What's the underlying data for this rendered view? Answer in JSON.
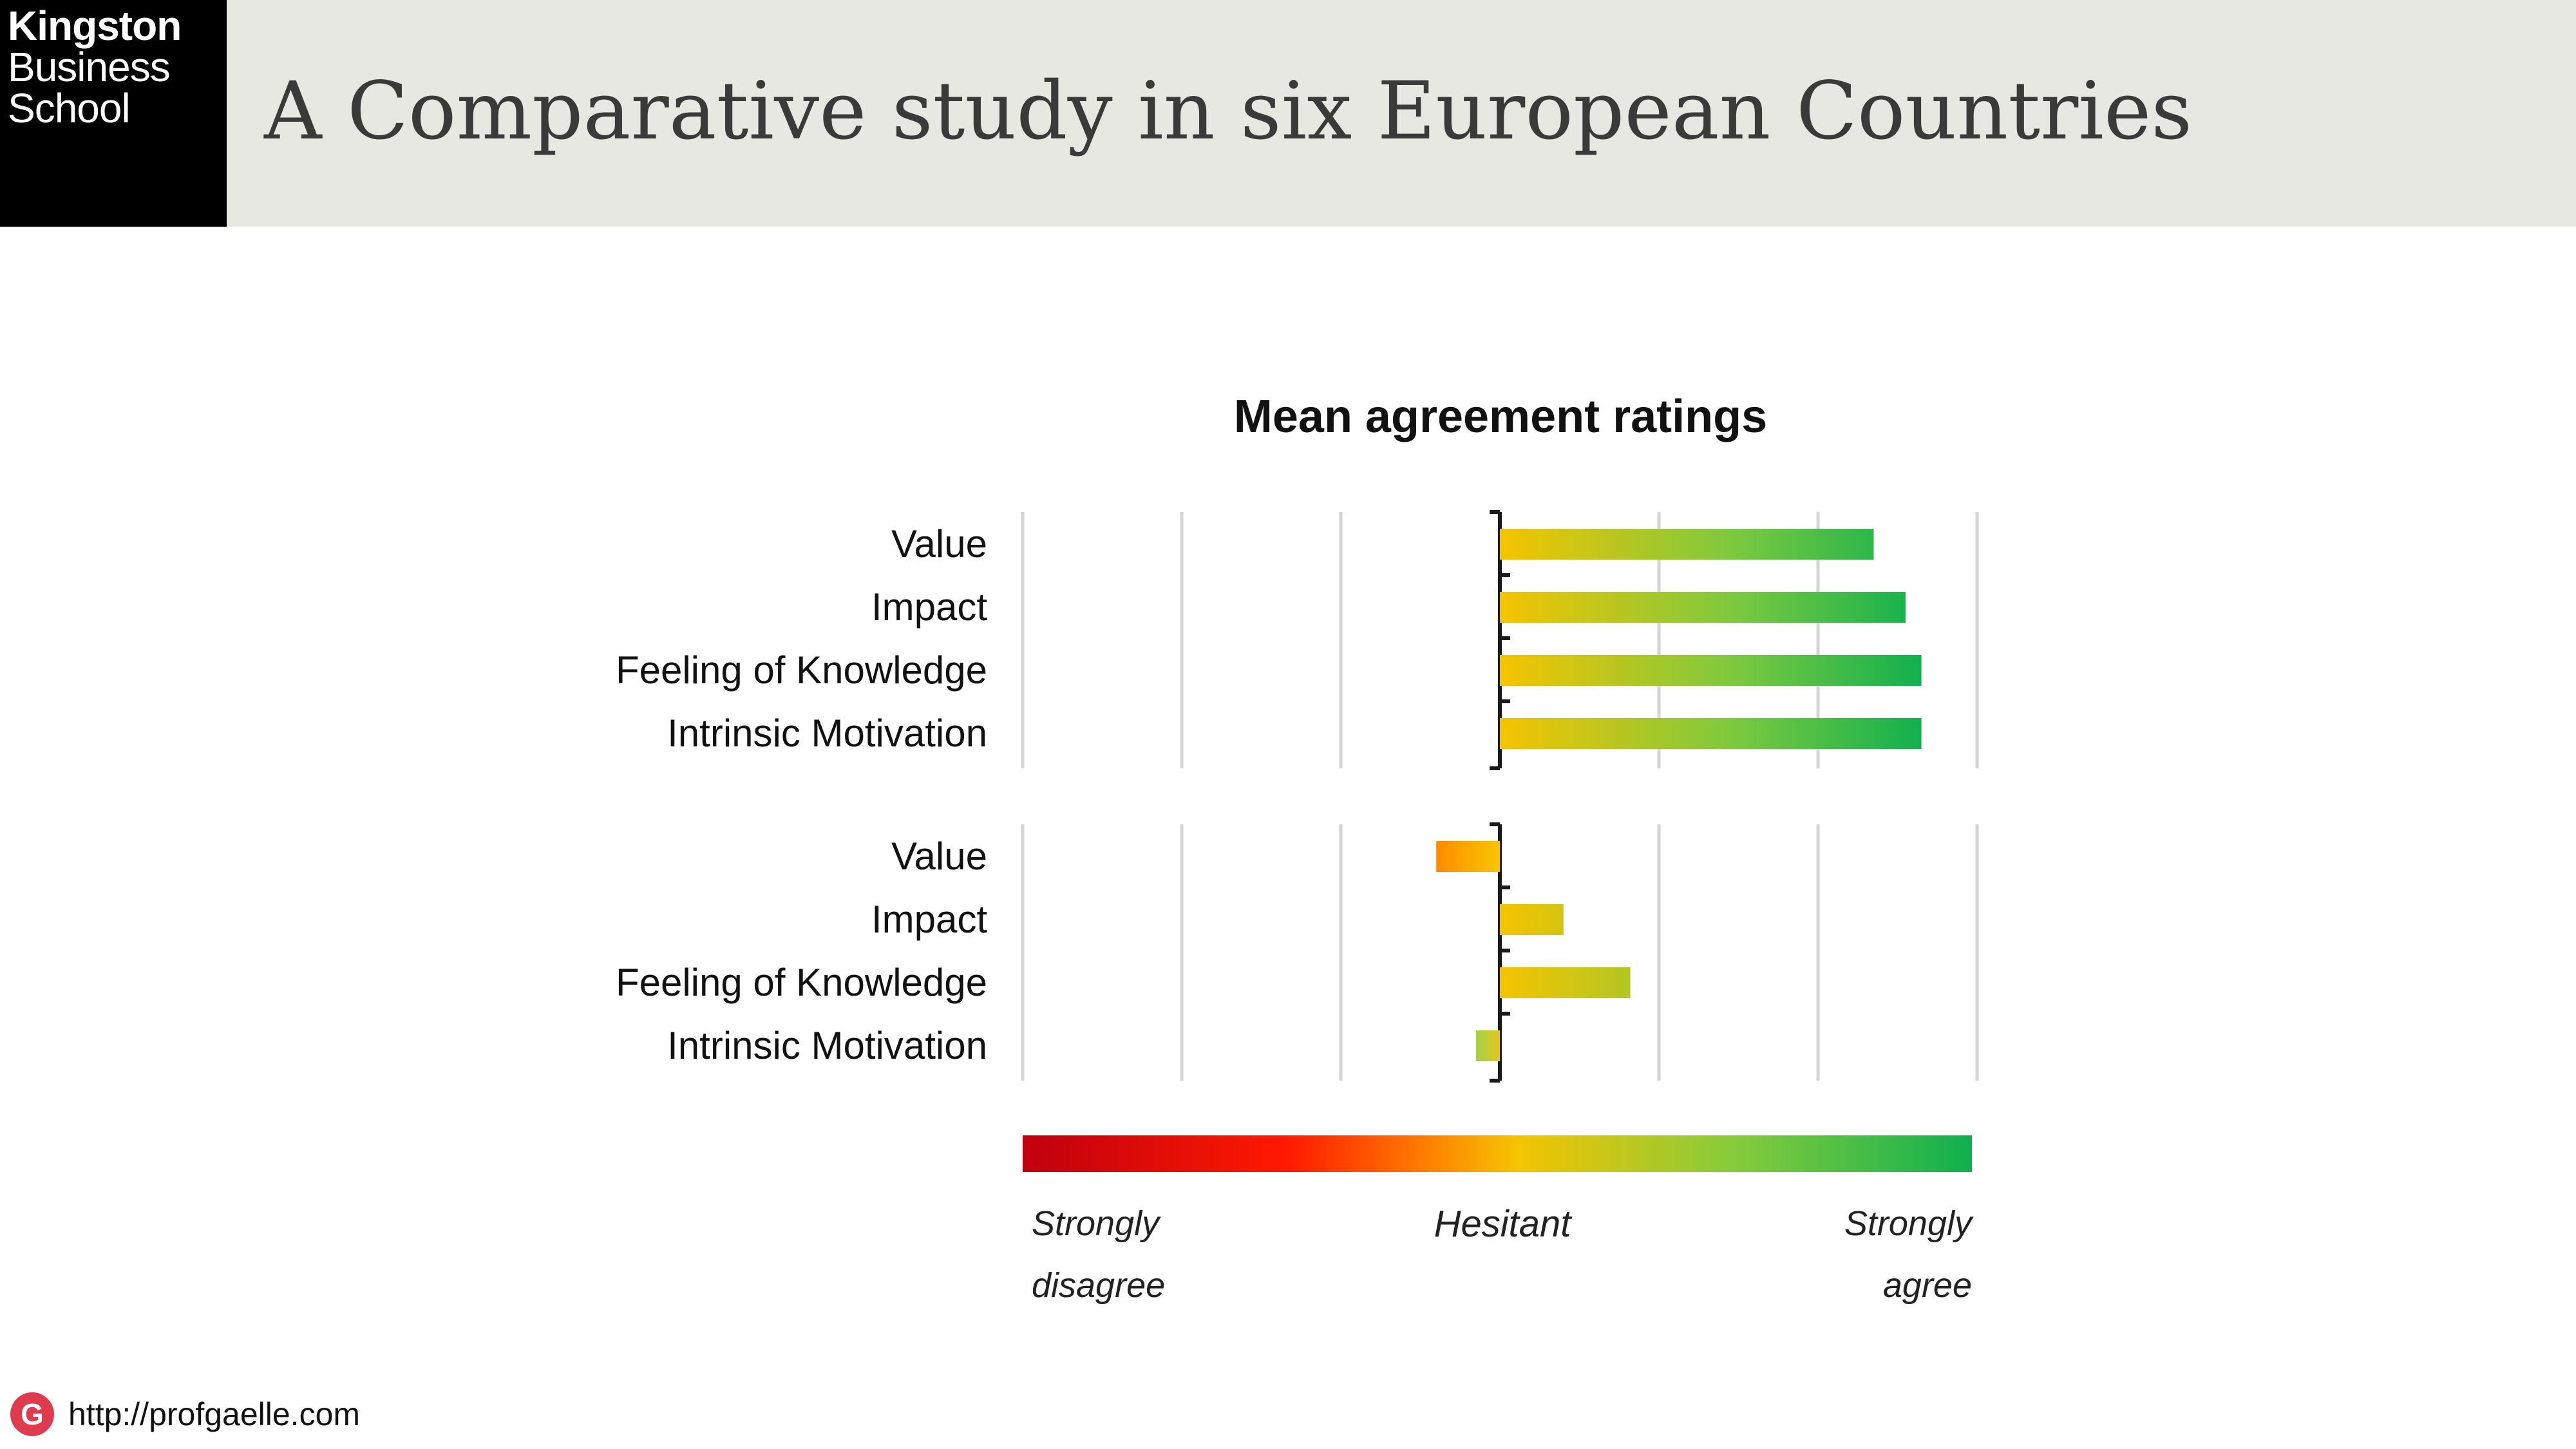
{
  "header": {
    "logo_lines": [
      "Kingston",
      "Business",
      "School"
    ],
    "title": "A Comparative study in six European Countries"
  },
  "footer": {
    "logo_letter": "G",
    "url": "http://profgaelle.com"
  },
  "colors": {
    "header_bg": "#e8e8e3",
    "scale_red": "#c0000f",
    "scale_orange": "#ff7b00",
    "scale_yellow": "#f5c400",
    "scale_green": "#0fb04f",
    "footer_logo": "#e03a4e"
  },
  "chart_data": {
    "type": "bar",
    "orientation": "horizontal",
    "title": "Mean agreement ratings",
    "xlim": [
      -3,
      3
    ],
    "center": 0,
    "groups": [
      {
        "categories": [
          "Value",
          "Impact",
          "Feeling of Knowledge",
          "Intrinsic Motivation"
        ],
        "values": [
          2.35,
          2.55,
          2.65,
          2.65
        ]
      },
      {
        "categories": [
          "Value",
          "Impact",
          "Feeling of Knowledge",
          "Intrinsic Motivation"
        ],
        "values": [
          -0.4,
          0.4,
          0.82,
          -0.15
        ]
      }
    ],
    "scale_labels": {
      "left": [
        "Strongly",
        "disagree"
      ],
      "center": "Hesitant",
      "right": [
        "Strongly",
        "agree"
      ]
    },
    "grid": true,
    "legend": "bottom"
  }
}
